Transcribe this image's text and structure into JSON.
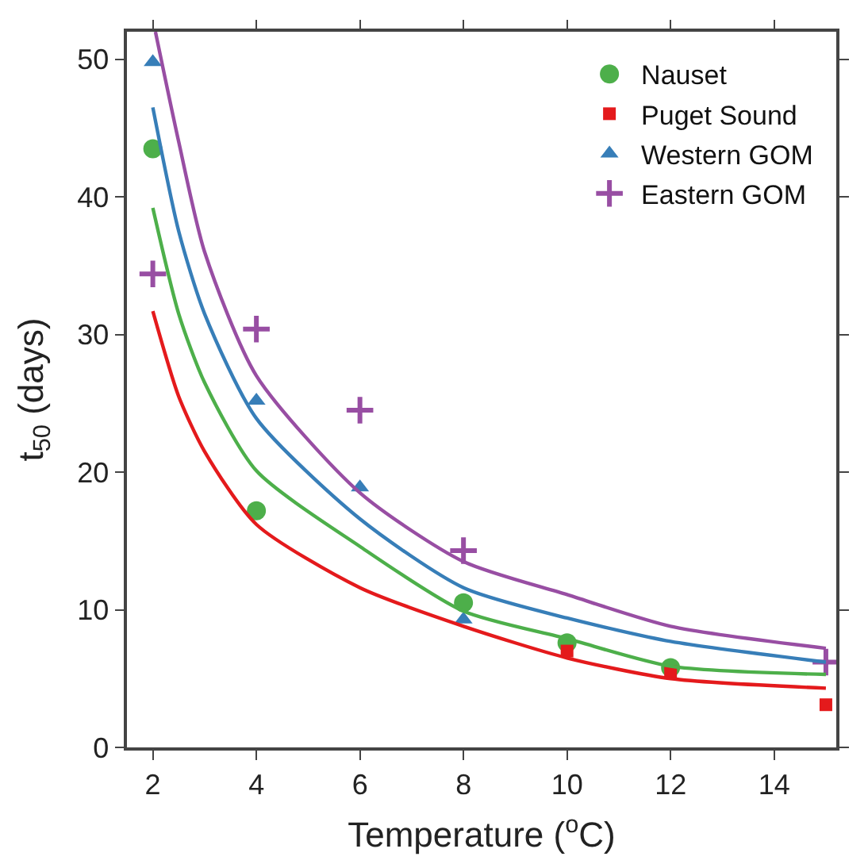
{
  "chart_data": {
    "type": "scatter",
    "xlabel": "Temperature ($^{o}$C)",
    "ylabel": "t$_{50}$ (days)",
    "xlim": [
      1.5,
      15.2
    ],
    "ylim": [
      0,
      52
    ],
    "xticks": [
      2,
      4,
      6,
      8,
      10,
      12,
      14
    ],
    "yticks": [
      0,
      10,
      20,
      30,
      40,
      50
    ],
    "legend": "top right",
    "series": [
      {
        "name": "Nauset",
        "marker": "circle",
        "color": "#4daf4a",
        "x": [
          2,
          4,
          8,
          10,
          12
        ],
        "values": [
          43.5,
          17.2,
          10.5,
          7.6,
          5.8
        ]
      },
      {
        "name": "Puget Sound",
        "marker": "square",
        "color": "#e41a1c",
        "x": [
          10,
          12,
          15
        ],
        "values": [
          7.0,
          5.5,
          3.1
        ]
      },
      {
        "name": "Western GOM",
        "marker": "triangle",
        "color": "#377eb8",
        "x": [
          2,
          4,
          6,
          8
        ],
        "values": [
          49.8,
          25.2,
          18.9,
          9.3
        ]
      },
      {
        "name": "Eastern GOM",
        "marker": "cross",
        "color": "#984ea3",
        "x": [
          2,
          4,
          6,
          8,
          15
        ],
        "values": [
          34.4,
          30.4,
          24.5,
          14.3,
          6.2
        ]
      },
      {
        "type": "line",
        "color": "#4daf4a",
        "x": [
          2,
          2.5,
          3,
          4,
          6,
          8,
          10,
          12,
          15
        ],
        "values": [
          39.2,
          31.5,
          26.5,
          20.1,
          14.6,
          9.9,
          7.9,
          5.9,
          5.3
        ]
      },
      {
        "type": "line",
        "color": "#e41a1c",
        "x": [
          2,
          2.5,
          3,
          4,
          6,
          8,
          10,
          12,
          15
        ],
        "values": [
          31.7,
          25.5,
          21.5,
          16.2,
          11.6,
          8.8,
          6.5,
          5.0,
          4.3
        ]
      },
      {
        "type": "line",
        "color": "#377eb8",
        "x": [
          2,
          2.5,
          3,
          4,
          6,
          8,
          10,
          12,
          15
        ],
        "values": [
          46.5,
          37.5,
          31.5,
          23.9,
          16.6,
          11.6,
          9.4,
          7.7,
          6.2
        ]
      },
      {
        "type": "line",
        "color": "#984ea3",
        "x": [
          2.05,
          2.5,
          3,
          4,
          6,
          8,
          10,
          12,
          15
        ],
        "values": [
          52,
          44,
          36,
          27.0,
          18.5,
          13.5,
          11.1,
          8.8,
          7.2
        ]
      }
    ]
  }
}
